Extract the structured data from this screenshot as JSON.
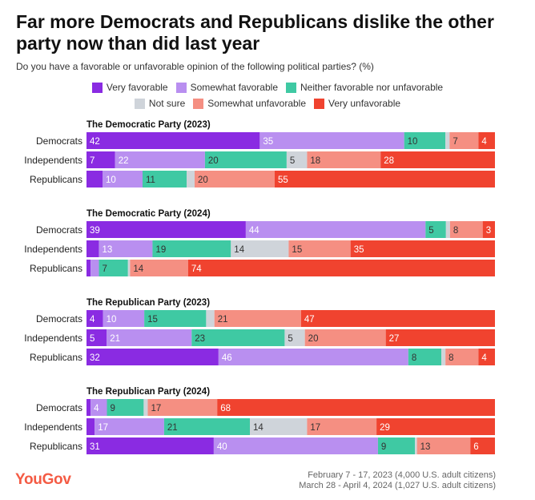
{
  "header": {
    "title": "Far more Democrats and Republicans dislike the other party now than did last year",
    "subtitle": "Do you have a favorable or unfavorable opinion of the following political parties? (%)"
  },
  "footer": {
    "logo": "YouGov",
    "source_line_1": "February 7 - 17, 2023 (4,000 U.S. adult citizens)",
    "source_line_2": "March 28 - April 4, 2024 (1,027 U.S. adult citizens)"
  },
  "chart_data": {
    "type": "bar",
    "orientation": "horizontal",
    "stacked": true,
    "legend_position": "top",
    "series": [
      {
        "name": "Very favorable",
        "color": "#8a2be2"
      },
      {
        "name": "Somewhat favorable",
        "color": "#b98ff0"
      },
      {
        "name": "Neither favorable nor unfavorable",
        "color": "#3fc9a3"
      },
      {
        "name": "Not sure",
        "color": "#cfd4da"
      },
      {
        "name": "Somewhat unfavorable",
        "color": "#f58f82"
      },
      {
        "name": "Very unfavorable",
        "color": "#f0432f"
      }
    ],
    "groups": [
      {
        "title": "The Democratic Party (2023)",
        "rows": [
          {
            "label": "Democrats",
            "values": [
              42,
              35,
              10,
              1,
              7,
              4
            ],
            "labels": [
              "42",
              "35",
              "10",
              "",
              "7",
              "4"
            ]
          },
          {
            "label": "Independents",
            "values": [
              7,
              22,
              20,
              5,
              18,
              28
            ],
            "labels": [
              "7",
              "22",
              "20",
              "5",
              "18",
              "28"
            ]
          },
          {
            "label": "Republicans",
            "values": [
              4,
              10,
              11,
              2,
              20,
              55
            ],
            "labels": [
              "",
              "10",
              "11",
              "",
              "20",
              "55"
            ]
          }
        ]
      },
      {
        "title": "The Democratic Party (2024)",
        "rows": [
          {
            "label": "Democrats",
            "values": [
              39,
              44,
              5,
              1,
              8,
              3
            ],
            "labels": [
              "39",
              "44",
              "5",
              "",
              "8",
              "3"
            ]
          },
          {
            "label": "Independents",
            "values": [
              3,
              13,
              19,
              14,
              15,
              35
            ],
            "labels": [
              "",
              "13",
              "19",
              "14",
              "15",
              "35"
            ]
          },
          {
            "label": "Republicans",
            "values": [
              1,
              2,
              7,
              0.5,
              14,
              74
            ],
            "labels": [
              "",
              "",
              "7",
              "",
              "14",
              "74"
            ]
          }
        ]
      },
      {
        "title": "The Republican Party (2023)",
        "rows": [
          {
            "label": "Democrats",
            "values": [
              4,
              10,
              15,
              2,
              21,
              47
            ],
            "labels": [
              "4",
              "10",
              "15",
              "",
              "21",
              "47"
            ]
          },
          {
            "label": "Independents",
            "values": [
              5,
              21,
              23,
              5,
              20,
              27
            ],
            "labels": [
              "5",
              "21",
              "23",
              "5",
              "20",
              "27"
            ]
          },
          {
            "label": "Republicans",
            "values": [
              32,
              46,
              8,
              1,
              8,
              4
            ],
            "labels": [
              "32",
              "46",
              "8",
              "",
              "8",
              "4"
            ]
          }
        ]
      },
      {
        "title": "The Republican Party (2024)",
        "rows": [
          {
            "label": "Democrats",
            "values": [
              1,
              4,
              9,
              1,
              17,
              68
            ],
            "labels": [
              "",
              "4",
              "9",
              "",
              "17",
              "68"
            ]
          },
          {
            "label": "Independents",
            "values": [
              2,
              17,
              21,
              14,
              17,
              29
            ],
            "labels": [
              "",
              "17",
              "21",
              "14",
              "17",
              "29"
            ]
          },
          {
            "label": "Republicans",
            "values": [
              31,
              40,
              9,
              0.5,
              13,
              6
            ],
            "labels": [
              "31",
              "40",
              "9",
              "",
              "13",
              "6"
            ]
          }
        ]
      }
    ]
  }
}
